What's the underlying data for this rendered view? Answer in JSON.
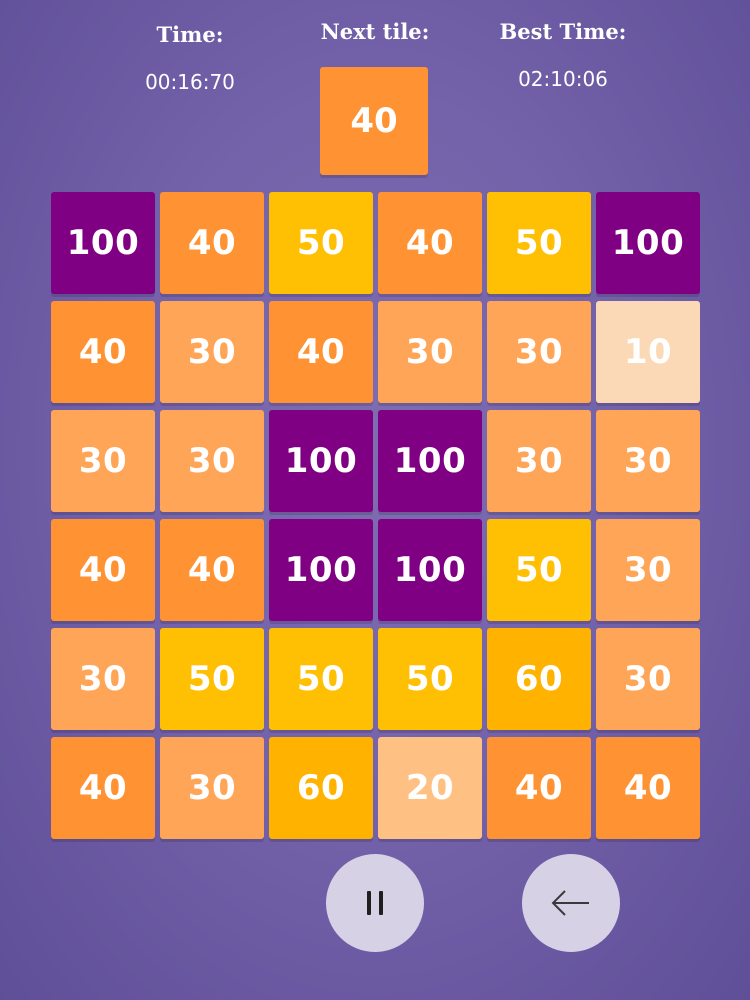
{
  "hud": {
    "time_label": "Time:",
    "time_value": "00:16:70",
    "next_label": "Next tile:",
    "next_value": "40",
    "best_label": "Best Time:",
    "best_value": "02:10:06"
  },
  "colors": {
    "10": "#fcd9b6",
    "20": "#ffc183",
    "30": "#ffa557",
    "40": "#ff9233",
    "50": "#ffc004",
    "60": "#ffb300",
    "100": "#800084"
  },
  "board": [
    [
      "100",
      "40",
      "50",
      "40",
      "50",
      "100"
    ],
    [
      "40",
      "30",
      "40",
      "30",
      "30",
      "10"
    ],
    [
      "30",
      "30",
      "100",
      "100",
      "30",
      "30"
    ],
    [
      "40",
      "40",
      "100",
      "100",
      "50",
      "30"
    ],
    [
      "30",
      "50",
      "50",
      "50",
      "60",
      "30"
    ],
    [
      "40",
      "30",
      "60",
      "20",
      "40",
      "40"
    ]
  ],
  "controls": {
    "pause_icon": "pause-icon",
    "back_icon": "arrow-left-icon"
  }
}
